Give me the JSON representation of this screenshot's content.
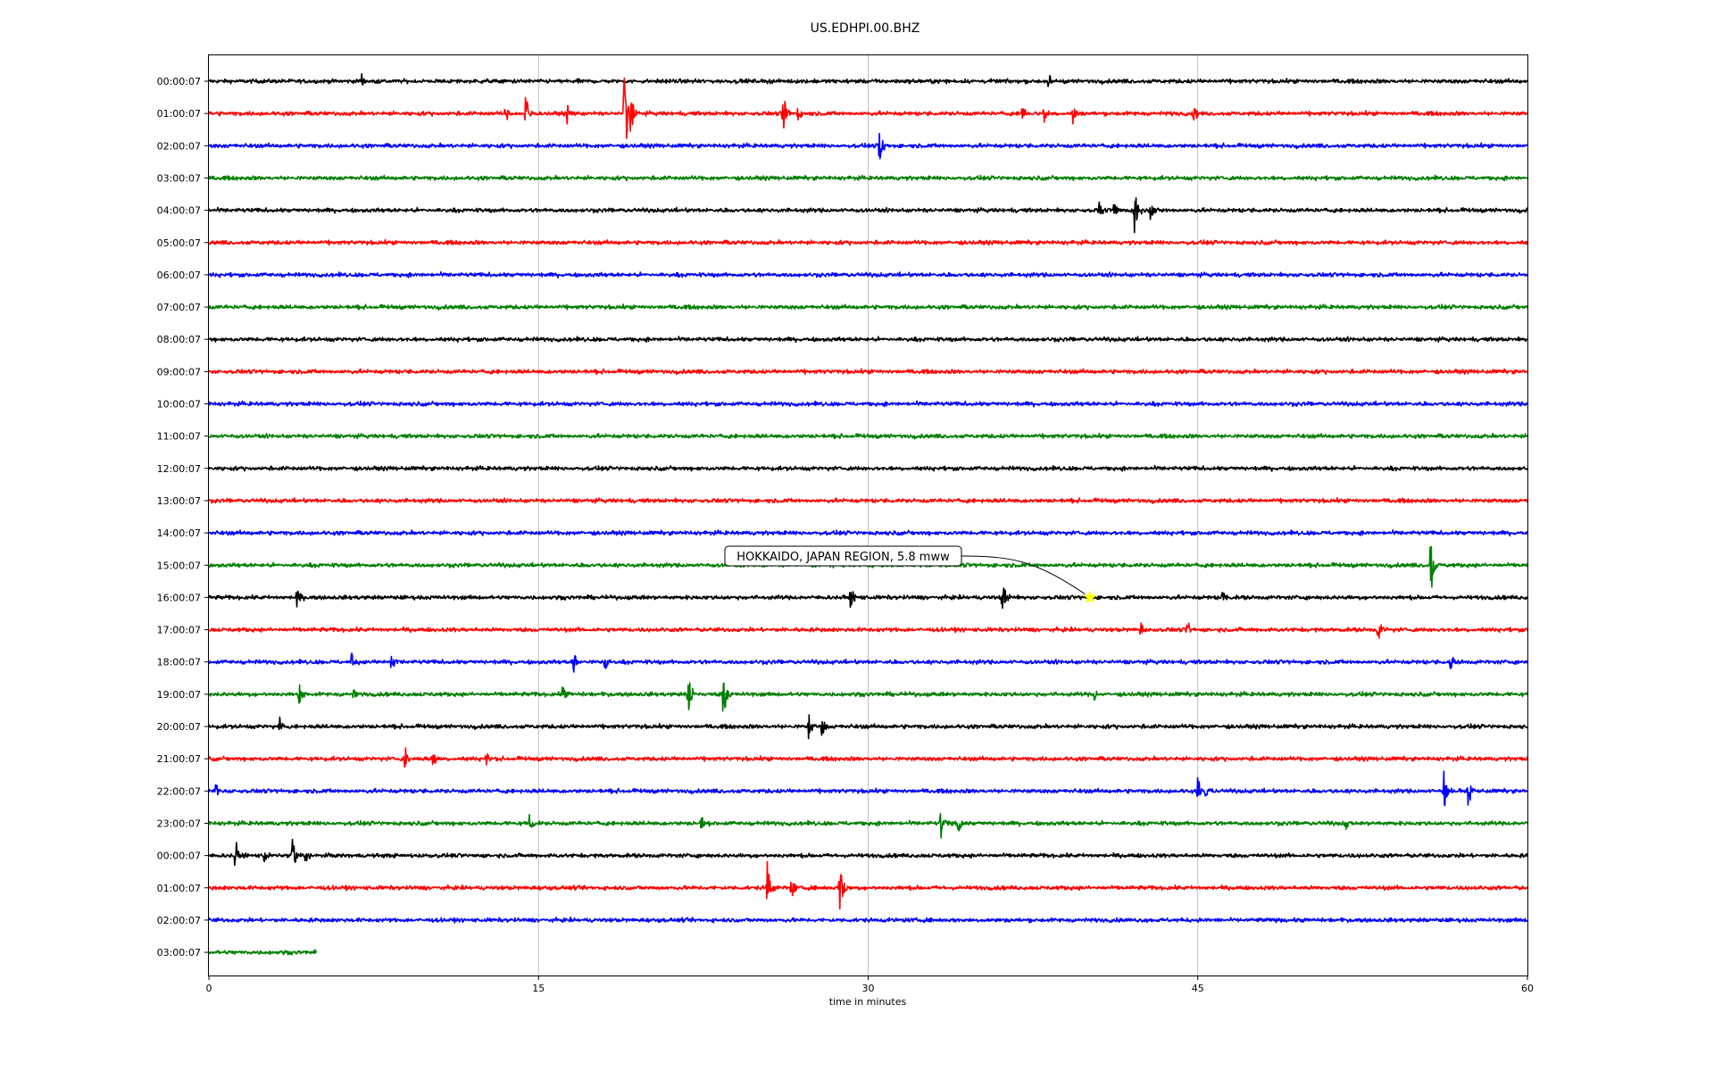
{
  "chart_data": {
    "type": "line",
    "title": "US.EDHPI.00.BHZ",
    "xlabel": "time in minutes",
    "ylabel": "",
    "xlim": [
      0,
      60
    ],
    "x_ticks": [
      0,
      15,
      30,
      45,
      60
    ],
    "x_tick_labels": [
      "0",
      "15",
      "30",
      "45",
      "60"
    ],
    "grid": "vertical lines at major x ticks",
    "row_labels": [
      "00:00:07",
      "01:00:07",
      "02:00:07",
      "03:00:07",
      "04:00:07",
      "05:00:07",
      "06:00:07",
      "07:00:07",
      "08:00:07",
      "09:00:07",
      "10:00:07",
      "11:00:07",
      "12:00:07",
      "13:00:07",
      "14:00:07",
      "15:00:07",
      "16:00:07",
      "17:00:07",
      "18:00:07",
      "19:00:07",
      "20:00:07",
      "21:00:07",
      "22:00:07",
      "23:00:07",
      "00:00:07",
      "01:00:07",
      "02:00:07",
      "03:00:07"
    ],
    "row_colors": [
      "#000000",
      "#ff0000",
      "#0000ff",
      "#008000"
    ],
    "last_row_end_minute": 4.9,
    "noise_amplitude": 0.1,
    "events": [
      {
        "row": 0,
        "minute": 6.9,
        "amplitude": 0.45
      },
      {
        "row": 0,
        "minute": 38.2,
        "amplitude": 0.3
      },
      {
        "row": 1,
        "minute": 13.5,
        "amplitude": 0.3
      },
      {
        "row": 1,
        "minute": 14.4,
        "amplitude": 0.85
      },
      {
        "row": 1,
        "minute": 16.3,
        "amplitude": 0.35
      },
      {
        "row": 1,
        "minute": 18.9,
        "amplitude": 1.9
      },
      {
        "row": 1,
        "minute": 19.2,
        "amplitude": 0.8
      },
      {
        "row": 1,
        "minute": 26.1,
        "amplitude": 1.0
      },
      {
        "row": 1,
        "minute": 26.8,
        "amplitude": 0.3
      },
      {
        "row": 1,
        "minute": 37.0,
        "amplitude": 0.35
      },
      {
        "row": 1,
        "minute": 38.0,
        "amplitude": 0.3
      },
      {
        "row": 1,
        "minute": 39.3,
        "amplitude": 0.5
      },
      {
        "row": 1,
        "minute": 44.8,
        "amplitude": 0.4
      },
      {
        "row": 2,
        "minute": 30.5,
        "amplitude": 0.6
      },
      {
        "row": 4,
        "minute": 40.5,
        "amplitude": 0.3
      },
      {
        "row": 4,
        "minute": 41.2,
        "amplitude": 0.35
      },
      {
        "row": 4,
        "minute": 42.1,
        "amplitude": 0.95
      },
      {
        "row": 4,
        "minute": 42.8,
        "amplitude": 0.4
      },
      {
        "row": 15,
        "minute": 55.6,
        "amplitude": 1.05
      },
      {
        "row": 16,
        "minute": 4.0,
        "amplitude": 0.35
      },
      {
        "row": 16,
        "minute": 29.2,
        "amplitude": 0.45
      },
      {
        "row": 16,
        "minute": 36.1,
        "amplitude": 0.7
      },
      {
        "row": 16,
        "minute": 46.1,
        "amplitude": 0.3
      },
      {
        "row": 17,
        "minute": 42.4,
        "amplitude": 0.3
      },
      {
        "row": 17,
        "minute": 44.5,
        "amplitude": 0.35
      },
      {
        "row": 17,
        "minute": 53.2,
        "amplitude": 0.5
      },
      {
        "row": 18,
        "minute": 6.5,
        "amplitude": 0.4
      },
      {
        "row": 18,
        "minute": 8.3,
        "amplitude": 0.4
      },
      {
        "row": 18,
        "minute": 16.6,
        "amplitude": 0.35
      },
      {
        "row": 18,
        "minute": 18.0,
        "amplitude": 0.35
      },
      {
        "row": 18,
        "minute": 56.5,
        "amplitude": 0.4
      },
      {
        "row": 19,
        "minute": 4.1,
        "amplitude": 0.35
      },
      {
        "row": 19,
        "minute": 6.6,
        "amplitude": 0.35
      },
      {
        "row": 19,
        "minute": 16.1,
        "amplitude": 0.4
      },
      {
        "row": 19,
        "minute": 21.8,
        "amplitude": 0.8
      },
      {
        "row": 19,
        "minute": 23.4,
        "amplitude": 0.9
      },
      {
        "row": 19,
        "minute": 40.3,
        "amplitude": 0.3
      },
      {
        "row": 20,
        "minute": 3.2,
        "amplitude": 0.3
      },
      {
        "row": 20,
        "minute": 27.3,
        "amplitude": 0.55
      },
      {
        "row": 20,
        "minute": 27.9,
        "amplitude": 0.3
      },
      {
        "row": 21,
        "minute": 8.9,
        "amplitude": 0.6
      },
      {
        "row": 21,
        "minute": 10.2,
        "amplitude": 0.3
      },
      {
        "row": 21,
        "minute": 12.6,
        "amplitude": 0.4
      },
      {
        "row": 22,
        "minute": 0.3,
        "amplitude": 0.3
      },
      {
        "row": 22,
        "minute": 45.0,
        "amplitude": 0.6
      },
      {
        "row": 22,
        "minute": 45.3,
        "amplitude": 0.4
      },
      {
        "row": 22,
        "minute": 56.2,
        "amplitude": 0.7
      },
      {
        "row": 22,
        "minute": 57.3,
        "amplitude": 0.65
      },
      {
        "row": 23,
        "minute": 14.6,
        "amplitude": 0.4
      },
      {
        "row": 23,
        "minute": 22.4,
        "amplitude": 0.3
      },
      {
        "row": 23,
        "minute": 33.3,
        "amplitude": 0.55
      },
      {
        "row": 23,
        "minute": 34.1,
        "amplitude": 0.35
      },
      {
        "row": 23,
        "minute": 51.7,
        "amplitude": 0.3
      },
      {
        "row": 24,
        "minute": 1.2,
        "amplitude": 0.7
      },
      {
        "row": 24,
        "minute": 2.5,
        "amplitude": 0.3
      },
      {
        "row": 24,
        "minute": 3.8,
        "amplitude": 0.7
      },
      {
        "row": 24,
        "minute": 4.4,
        "amplitude": 0.35
      },
      {
        "row": 25,
        "minute": 25.4,
        "amplitude": 0.95
      },
      {
        "row": 25,
        "minute": 26.5,
        "amplitude": 0.4
      },
      {
        "row": 25,
        "minute": 28.7,
        "amplitude": 0.9
      }
    ],
    "annotation": {
      "text": "HOKKAIDO, JAPAN REGION, 5.8 mww",
      "row": 16,
      "minute": 40.1,
      "marker": "star",
      "marker_color": "#ffff00"
    }
  }
}
